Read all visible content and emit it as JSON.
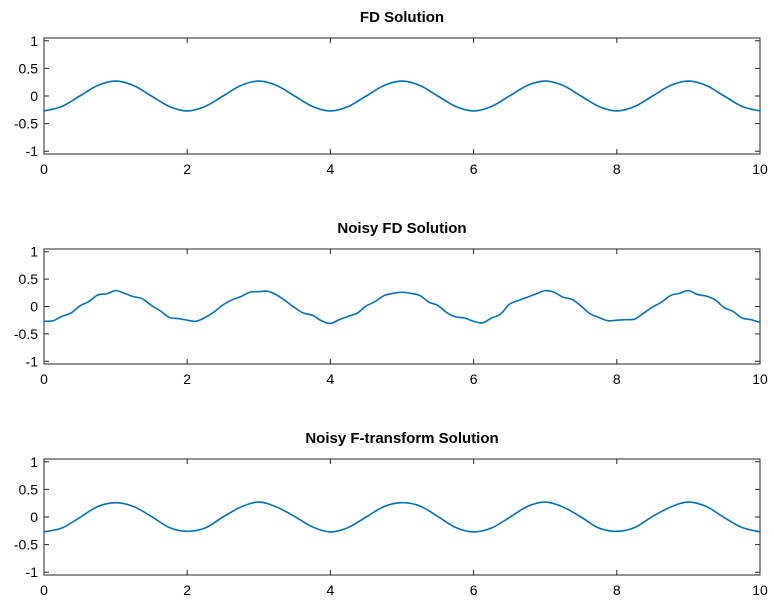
{
  "chart_data": [
    {
      "type": "line",
      "title": "FD Solution",
      "xlabel": "",
      "ylabel": "",
      "xlim": [
        0,
        10
      ],
      "ylim": [
        -1.05,
        1.05
      ],
      "x_ticks": [
        "0",
        "2",
        "4",
        "6",
        "8",
        "10"
      ],
      "y_ticks": [
        "-1",
        "-0.5",
        "0",
        "0.5",
        "1"
      ],
      "grid": false,
      "color": "#0072BD",
      "series": [
        {
          "x": [
            0,
            0.25,
            0.5,
            0.75,
            1,
            1.25,
            1.5,
            1.75,
            2,
            2.25,
            2.5,
            2.75,
            3,
            3.25,
            3.5,
            3.75,
            4,
            4.25,
            4.5,
            4.75,
            5,
            5.25,
            5.5,
            5.75,
            6,
            6.25,
            6.5,
            6.75,
            7,
            7.25,
            7.5,
            7.75,
            8,
            8.25,
            8.5,
            8.75,
            9,
            9.25,
            9.5,
            9.75,
            10
          ],
          "y": [
            -0.27,
            -0.19,
            0,
            0.19,
            0.27,
            0.19,
            0,
            -0.19,
            -0.27,
            -0.19,
            0,
            0.19,
            0.27,
            0.19,
            0,
            -0.19,
            -0.27,
            -0.19,
            0,
            0.19,
            0.27,
            0.19,
            0,
            -0.19,
            -0.27,
            -0.19,
            0,
            0.19,
            0.27,
            0.19,
            0,
            -0.19,
            -0.27,
            -0.19,
            0,
            0.19,
            0.27,
            0.19,
            0,
            -0.19,
            -0.27
          ]
        }
      ]
    },
    {
      "type": "line",
      "title": "Noisy FD Solution",
      "xlabel": "",
      "ylabel": "",
      "xlim": [
        0,
        10
      ],
      "ylim": [
        -1.05,
        1.05
      ],
      "x_ticks": [
        "0",
        "2",
        "4",
        "6",
        "8",
        "10"
      ],
      "y_ticks": [
        "-1",
        "-0.5",
        "0",
        "0.5",
        "1"
      ],
      "grid": false,
      "color": "#0072BD",
      "series": [
        {
          "x": [
            0,
            0.125,
            0.25,
            0.375,
            0.5,
            0.625,
            0.75,
            0.875,
            1,
            1.125,
            1.25,
            1.375,
            1.5,
            1.625,
            1.75,
            1.875,
            2,
            2.125,
            2.25,
            2.375,
            2.5,
            2.625,
            2.75,
            2.875,
            3,
            3.125,
            3.25,
            3.375,
            3.5,
            3.625,
            3.75,
            3.875,
            4,
            4.125,
            4.25,
            4.375,
            4.5,
            4.625,
            4.75,
            4.875,
            5,
            5.125,
            5.25,
            5.375,
            5.5,
            5.625,
            5.75,
            5.875,
            6,
            6.125,
            6.25,
            6.375,
            6.5,
            6.625,
            6.75,
            6.875,
            7,
            7.125,
            7.25,
            7.375,
            7.5,
            7.625,
            7.75,
            7.875,
            8,
            8.125,
            8.25,
            8.375,
            8.5,
            8.625,
            8.75,
            8.875,
            9,
            9.125,
            9.25,
            9.375,
            9.5,
            9.625,
            9.75,
            9.875,
            10
          ],
          "y": [
            -0.27,
            -0.26,
            -0.18,
            -0.12,
            0.01,
            0.09,
            0.21,
            0.23,
            0.29,
            0.24,
            0.18,
            0.14,
            0.02,
            -0.08,
            -0.2,
            -0.22,
            -0.25,
            -0.27,
            -0.2,
            -0.1,
            0.03,
            0.12,
            0.18,
            0.26,
            0.27,
            0.28,
            0.21,
            0.1,
            -0.02,
            -0.12,
            -0.16,
            -0.26,
            -0.31,
            -0.24,
            -0.18,
            -0.12,
            0.01,
            0.09,
            0.2,
            0.24,
            0.26,
            0.24,
            0.2,
            0.08,
            0.02,
            -0.11,
            -0.19,
            -0.21,
            -0.27,
            -0.3,
            -0.21,
            -0.14,
            0.04,
            0.11,
            0.17,
            0.23,
            0.29,
            0.26,
            0.17,
            0.13,
            0.01,
            -0.13,
            -0.2,
            -0.26,
            -0.25,
            -0.24,
            -0.23,
            -0.12,
            -0.01,
            0.08,
            0.2,
            0.24,
            0.29,
            0.22,
            0.19,
            0.12,
            -0.02,
            -0.09,
            -0.21,
            -0.24,
            -0.29
          ]
        }
      ]
    },
    {
      "type": "line",
      "title": "Noisy F-transform Solution",
      "xlabel": "",
      "ylabel": "",
      "xlim": [
        0,
        10
      ],
      "ylim": [
        -1.05,
        1.05
      ],
      "x_ticks": [
        "0",
        "2",
        "4",
        "6",
        "8",
        "10"
      ],
      "y_ticks": [
        "-1",
        "-0.5",
        "0",
        "0.5",
        "1"
      ],
      "grid": false,
      "color": "#0072BD",
      "series": [
        {
          "x": [
            0,
            0.25,
            0.5,
            0.75,
            1,
            1.25,
            1.5,
            1.75,
            2,
            2.25,
            2.5,
            2.75,
            3,
            3.25,
            3.5,
            3.75,
            4,
            4.25,
            4.5,
            4.75,
            5,
            5.25,
            5.5,
            5.75,
            6,
            6.25,
            6.5,
            6.75,
            7,
            7.25,
            7.5,
            7.75,
            8,
            8.25,
            8.5,
            8.75,
            9,
            9.25,
            9.5,
            9.75,
            10
          ],
          "y": [
            -0.27,
            -0.2,
            -0.01,
            0.19,
            0.26,
            0.19,
            0.01,
            -0.19,
            -0.26,
            -0.2,
            0,
            0.18,
            0.27,
            0.18,
            0.01,
            -0.18,
            -0.27,
            -0.19,
            0,
            0.19,
            0.26,
            0.2,
            0.01,
            -0.19,
            -0.27,
            -0.2,
            -0.01,
            0.19,
            0.27,
            0.18,
            0,
            -0.2,
            -0.26,
            -0.19,
            0.01,
            0.18,
            0.27,
            0.19,
            -0.01,
            -0.19,
            -0.27
          ]
        }
      ]
    }
  ]
}
